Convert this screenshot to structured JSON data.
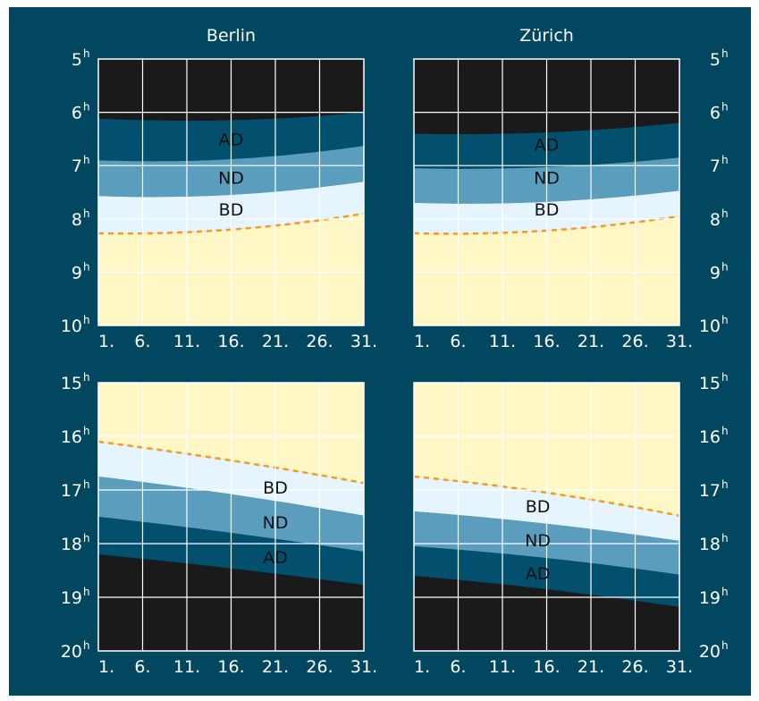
{
  "colors": {
    "background": "#00475f",
    "night": "#1b1a1a",
    "astronomical_dusk": "#03506e",
    "nautical_dusk": "#5a9dbd",
    "civil_dusk": "#e6f5fd",
    "daylight": "#fff8c6",
    "sun_line": "#f49a22",
    "grid": "#ffffff",
    "text": "#ffffff",
    "band_label": "#111111"
  },
  "labels": {
    "berlin": "Berlin",
    "zurich": "Zürich",
    "astronomical": "AD",
    "nautical": "ND",
    "civil": "BD",
    "hour_suffix": "h"
  },
  "chart_data": [
    {
      "type": "area",
      "panel": "morning",
      "city": "Berlin",
      "title": "Berlin",
      "x": [
        1,
        31
      ],
      "xticks": [
        "1.",
        "6.",
        "11.",
        "16.",
        "21.",
        "26.",
        "31."
      ],
      "yticks": [
        "5",
        "6",
        "7",
        "8",
        "9",
        "10"
      ],
      "ylim": [
        5,
        10
      ],
      "y_inverted": true,
      "grid": true,
      "series": [
        {
          "name": "AD",
          "start": [
            6.12,
            6.0
          ],
          "mid": 6.15
        },
        {
          "name": "ND",
          "start": [
            6.9,
            6.63
          ],
          "mid": 6.88
        },
        {
          "name": "BD",
          "start": [
            7.57,
            7.3
          ],
          "mid": 7.55
        },
        {
          "name": "sunrise",
          "start": [
            8.27,
            7.9
          ],
          "mid": 8.2
        }
      ],
      "band_labels": [
        {
          "key": "astronomical",
          "x": 16,
          "y": 6.5
        },
        {
          "key": "nautical",
          "x": 16,
          "y": 7.22
        },
        {
          "key": "civil",
          "x": 16,
          "y": 7.82
        }
      ]
    },
    {
      "type": "area",
      "panel": "morning",
      "city": "Zürich",
      "title": "Zürich",
      "x": [
        1,
        31
      ],
      "xticks": [
        "1.",
        "6.",
        "11.",
        "16.",
        "21.",
        "26.",
        "31."
      ],
      "yticks": [
        "5",
        "6",
        "7",
        "8",
        "9",
        "10"
      ],
      "ylim": [
        5,
        10
      ],
      "y_inverted": true,
      "grid": true,
      "series": [
        {
          "name": "AD",
          "start": [
            6.4,
            6.2
          ],
          "mid": 6.38
        },
        {
          "name": "ND",
          "start": [
            7.05,
            6.85
          ],
          "mid": 7.03
        },
        {
          "name": "BD",
          "start": [
            7.7,
            7.47
          ],
          "mid": 7.68
        },
        {
          "name": "sunrise",
          "start": [
            8.27,
            7.95
          ],
          "mid": 8.22
        }
      ],
      "band_labels": [
        {
          "key": "astronomical",
          "x": 16,
          "y": 6.6
        },
        {
          "key": "nautical",
          "x": 16,
          "y": 7.22
        },
        {
          "key": "civil",
          "x": 16,
          "y": 7.82
        }
      ]
    },
    {
      "type": "area",
      "panel": "evening",
      "city": "Berlin",
      "x": [
        1,
        31
      ],
      "xticks": [
        "1.",
        "6.",
        "11.",
        "16.",
        "21.",
        "26.",
        "31."
      ],
      "yticks": [
        "15",
        "16",
        "17",
        "18",
        "19",
        "20"
      ],
      "ylim": [
        15,
        20
      ],
      "y_inverted": true,
      "grid": true,
      "series": [
        {
          "name": "sunset",
          "start": [
            16.1,
            16.87
          ],
          "mid": 16.45
        },
        {
          "name": "BD",
          "start": [
            16.75,
            17.48
          ],
          "mid": 17.08
        },
        {
          "name": "ND",
          "start": [
            17.5,
            18.15
          ],
          "mid": 17.8
        },
        {
          "name": "AD",
          "start": [
            18.2,
            18.77
          ],
          "mid": 18.46
        }
      ],
      "band_labels": [
        {
          "key": "civil",
          "x": 21,
          "y": 16.95
        },
        {
          "key": "nautical",
          "x": 21,
          "y": 17.6
        },
        {
          "key": "astronomical",
          "x": 21,
          "y": 18.25
        }
      ]
    },
    {
      "type": "area",
      "panel": "evening",
      "city": "Zürich",
      "x": [
        1,
        31
      ],
      "xticks": [
        "1.",
        "6.",
        "11.",
        "16.",
        "21.",
        "26.",
        "31."
      ],
      "yticks": [
        "15",
        "16",
        "17",
        "18",
        "19",
        "20"
      ],
      "ylim": [
        15,
        20
      ],
      "y_inverted": true,
      "grid": true,
      "series": [
        {
          "name": "sunset",
          "start": [
            16.75,
            17.48
          ],
          "mid": 17.05
        },
        {
          "name": "BD",
          "start": [
            17.4,
            17.95
          ],
          "mid": 17.63
        },
        {
          "name": "ND",
          "start": [
            18.05,
            18.58
          ],
          "mid": 18.27
        },
        {
          "name": "AD",
          "start": [
            18.6,
            19.18
          ],
          "mid": 18.85
        }
      ],
      "band_labels": [
        {
          "key": "civil",
          "x": 15,
          "y": 17.3
        },
        {
          "key": "nautical",
          "x": 15,
          "y": 17.93
        },
        {
          "key": "astronomical",
          "x": 15,
          "y": 18.55
        }
      ]
    }
  ]
}
